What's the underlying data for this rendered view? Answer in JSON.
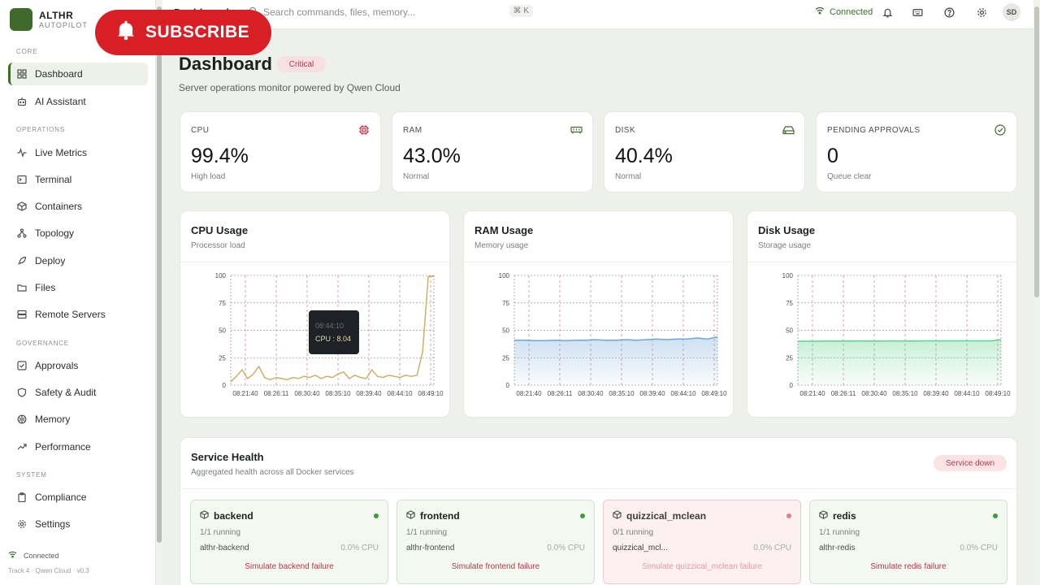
{
  "brand": {
    "name": "ALTHR",
    "sub": "AUTOPILOT"
  },
  "sidebar": {
    "groups": [
      {
        "label": "CORE"
      },
      {
        "label": "OPERATIONS"
      },
      {
        "label": "GOVERNANCE"
      },
      {
        "label": "SYSTEM"
      }
    ],
    "items": [
      {
        "label": "Dashboard"
      },
      {
        "label": "AI Assistant"
      },
      {
        "label": "Live Metrics"
      },
      {
        "label": "Terminal"
      },
      {
        "label": "Containers"
      },
      {
        "label": "Topology"
      },
      {
        "label": "Deploy"
      },
      {
        "label": "Files"
      },
      {
        "label": "Remote Servers"
      },
      {
        "label": "Approvals"
      },
      {
        "label": "Safety & Audit"
      },
      {
        "label": "Memory"
      },
      {
        "label": "Performance"
      },
      {
        "label": "Compliance"
      },
      {
        "label": "Settings"
      }
    ],
    "footer": {
      "status": "Connected",
      "version": "Track 4 · Qwen Cloud · v0.3"
    }
  },
  "topbar": {
    "crumb": "Dashboard",
    "search_placeholder": "Search commands, files, memory...",
    "shortcut": "⌘ K",
    "connection": "Connected",
    "avatar": "SD"
  },
  "overlay": {
    "subscribe": "SUBSCRIBE"
  },
  "header": {
    "title": "Dashboard",
    "badge": "Critical",
    "subtitle": "Server operations monitor powered by Qwen Cloud"
  },
  "stats": [
    {
      "label": "CPU",
      "value": "99.4%",
      "note": "High load",
      "icon": "cpu-icon"
    },
    {
      "label": "RAM",
      "value": "43.0%",
      "note": "Normal",
      "icon": "memory-icon"
    },
    {
      "label": "DISK",
      "value": "40.4%",
      "note": "Normal",
      "icon": "disk-icon"
    },
    {
      "label": "PENDING APPROVALS",
      "value": "0",
      "note": "Queue clear",
      "icon": "check-circle-icon"
    }
  ],
  "colors": {
    "cpu_line": "#c9b16a",
    "ram_line": "#6fa6d6",
    "disk_line": "#5fd28b",
    "critical": "#b43646",
    "accent": "#3f6a2b"
  },
  "chart_data": [
    {
      "type": "line",
      "title": "CPU Usage",
      "subtitle": "Processor load",
      "x_ticks": [
        "08:21:40",
        "08:26:11",
        "08:30:40",
        "08:35:10",
        "08:39:40",
        "08:44:10",
        "08:49:10"
      ],
      "y_ticks": [
        0,
        25,
        50,
        75,
        100
      ],
      "ylim": [
        0,
        100
      ],
      "series": [
        {
          "values": [
            3,
            8,
            14,
            6,
            10,
            17,
            7,
            5,
            7,
            6,
            5,
            7,
            6,
            8,
            7,
            9,
            6,
            8,
            7,
            10,
            12,
            6,
            9,
            7,
            6,
            14,
            8,
            7,
            9,
            8,
            7,
            9,
            8,
            9,
            30,
            99,
            99
          ]
        }
      ],
      "tooltip": {
        "time": "08:44:10",
        "text": "CPU : 8.04"
      }
    },
    {
      "type": "area",
      "title": "RAM Usage",
      "subtitle": "Memory usage",
      "x_ticks": [
        "08:21:40",
        "08:26:11",
        "08:30:40",
        "08:35:10",
        "08:39:40",
        "08:44:10",
        "08:49:10"
      ],
      "y_ticks": [
        0,
        25,
        50,
        75,
        100
      ],
      "ylim": [
        0,
        100
      ],
      "series": [
        {
          "values": [
            41,
            41,
            40.5,
            40.5,
            41,
            40.5,
            41,
            41,
            41.5,
            41,
            41,
            41.5,
            41,
            41.5,
            42,
            41.5,
            42,
            42,
            43,
            42,
            44
          ]
        }
      ]
    },
    {
      "type": "area",
      "title": "Disk Usage",
      "subtitle": "Storage usage",
      "x_ticks": [
        "08:21:40",
        "08:26:11",
        "08:30:40",
        "08:35:10",
        "08:39:40",
        "08:44:10",
        "08:49:10"
      ],
      "y_ticks": [
        0,
        25,
        50,
        75,
        100
      ],
      "ylim": [
        0,
        100
      ],
      "series": [
        {
          "values": [
            40,
            40,
            40,
            40.2,
            40.1,
            40.2,
            40.3,
            40.2,
            40.2,
            40.3,
            40.3,
            40.2,
            40.3,
            40.4,
            40.3,
            40.4,
            40.4,
            40.4,
            40.4,
            40.4,
            41.5
          ]
        }
      ]
    }
  ],
  "service_health": {
    "title": "Service Health",
    "subtitle": "Aggregated health across all Docker services",
    "badge": "Service down",
    "services": [
      {
        "name": "backend",
        "running": "1/1 running",
        "container": "althr-backend",
        "cpu": "0.0% CPU",
        "action": "Simulate backend failure"
      },
      {
        "name": "frontend",
        "running": "1/1 running",
        "container": "althr-frontend",
        "cpu": "0.0% CPU",
        "action": "Simulate frontend failure"
      },
      {
        "name": "quizzical_mclean",
        "running": "0/1 running",
        "container": "quizzical_mcl...",
        "cpu": "0.0% CPU",
        "action": "Simulate quizzical_mclean failure"
      },
      {
        "name": "redis",
        "running": "1/1 running",
        "container": "althr-redis",
        "cpu": "0.0% CPU",
        "action": "Simulate redis failure"
      }
    ]
  }
}
